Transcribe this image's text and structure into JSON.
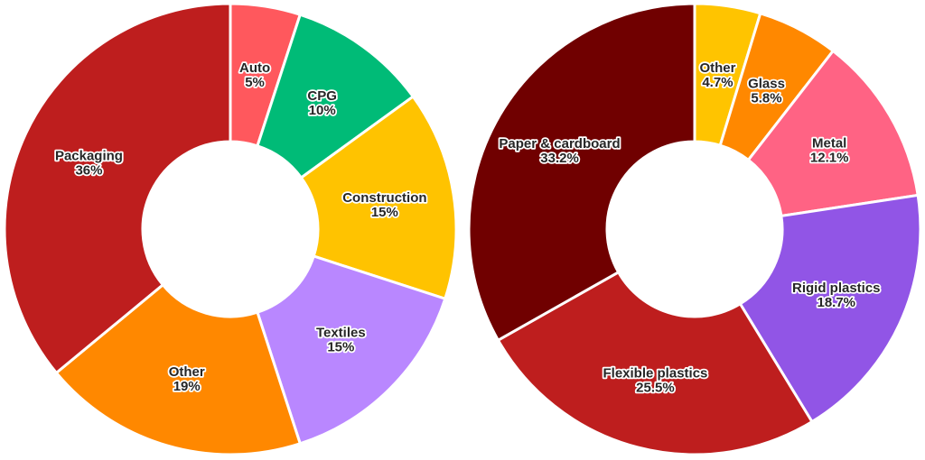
{
  "chart_data": [
    {
      "type": "pie",
      "categories": [
        "Auto",
        "CPG",
        "Construction",
        "Textiles",
        "Other",
        "Packaging"
      ],
      "values": [
        5,
        10,
        15,
        15,
        19,
        36
      ],
      "value_labels": [
        "5%",
        "10%",
        "15%",
        "15%",
        "19%",
        "36%"
      ],
      "colors": [
        "#ff585d",
        "#00bb77",
        "#ffc300",
        "#b987ff",
        "#ff8800",
        "#be1e1e"
      ]
    },
    {
      "type": "pie",
      "categories": [
        "Other",
        "Glass",
        "Metal",
        "Rigid plastics",
        "Flexible plastics",
        "Paper & cardboard"
      ],
      "values": [
        4.7,
        5.8,
        12.1,
        18.7,
        25.5,
        33.2
      ],
      "value_labels": [
        "4.7%",
        "5.8%",
        "12.1%",
        "18.7%",
        "25.5%",
        "33.2%"
      ],
      "colors": [
        "#ffc400",
        "#ff8800",
        "#ff6384",
        "#9155e6",
        "#be1e1e",
        "#700000"
      ]
    }
  ]
}
